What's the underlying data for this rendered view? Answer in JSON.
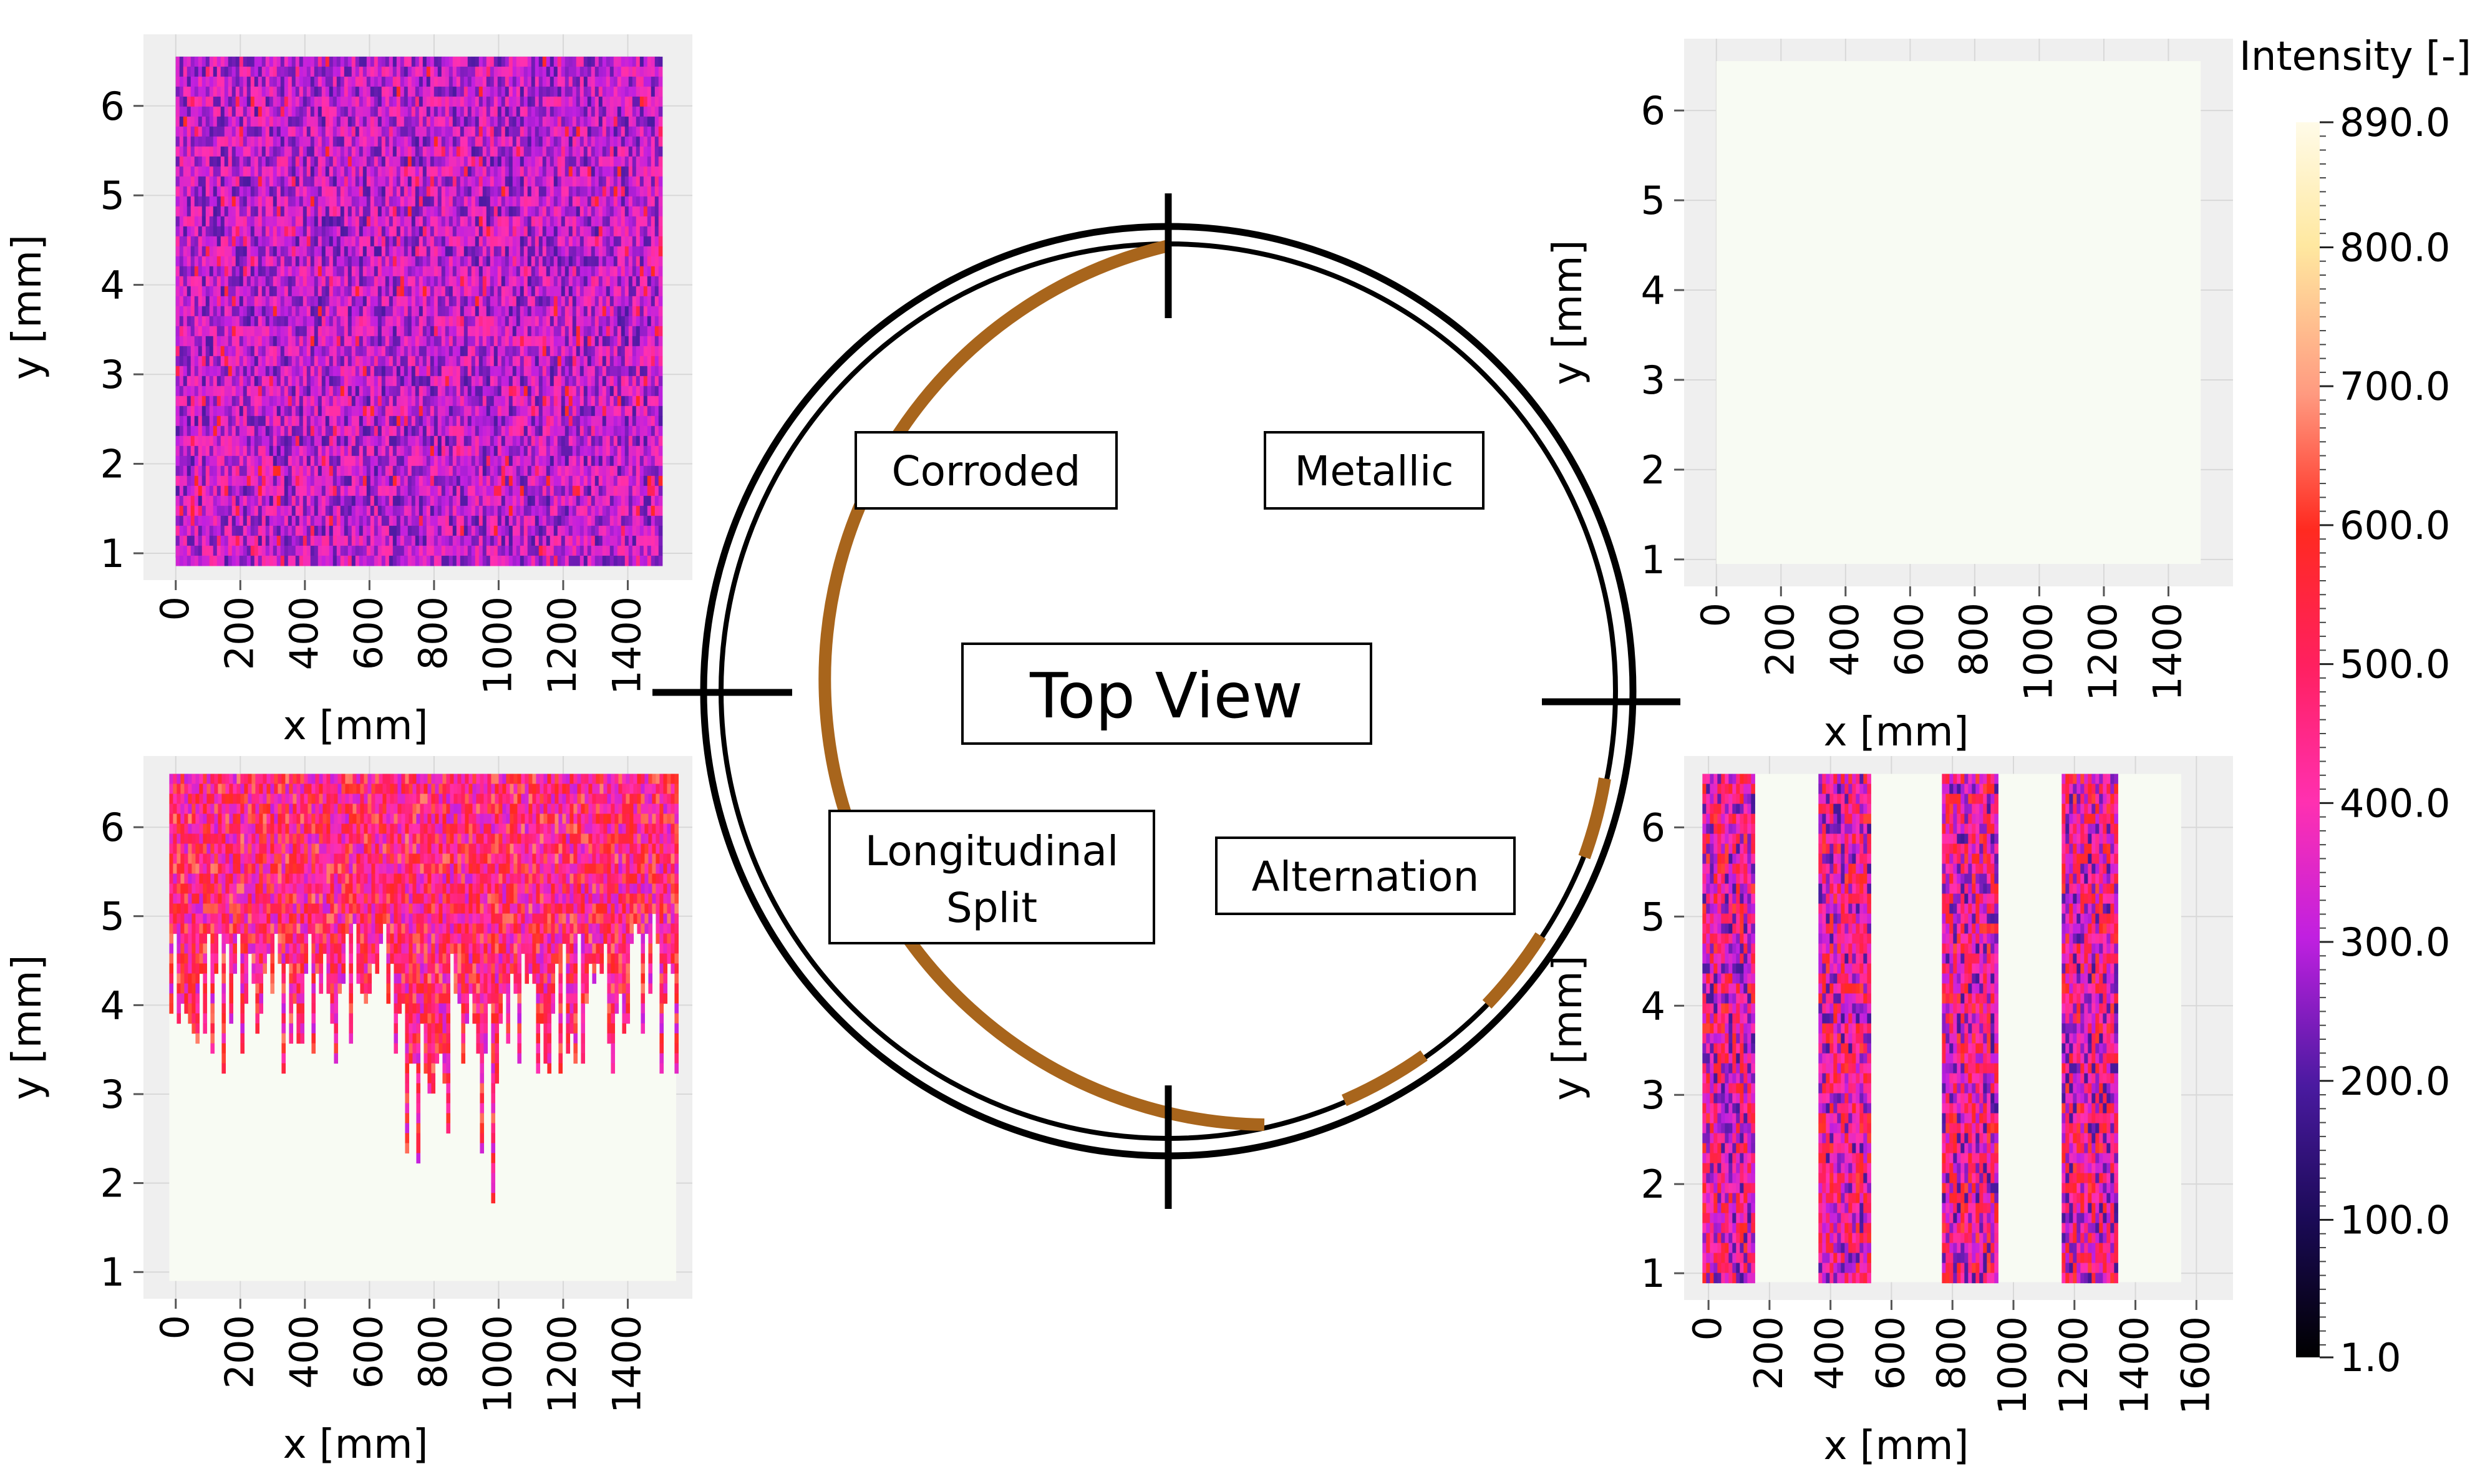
{
  "colorbar": {
    "title": "Intensity [-]",
    "range": [
      1.0,
      890.0
    ],
    "ticks": [
      1.0,
      100.0,
      200.0,
      300.0,
      400.0,
      500.0,
      600.0,
      700.0,
      800.0,
      890.0
    ],
    "tick_labels": [
      "1.0",
      "100.0",
      "200.0",
      "300.0",
      "400.0",
      "500.0",
      "600.0",
      "700.0",
      "800.0",
      "890.0"
    ]
  },
  "diagram": {
    "center_label": "Top View",
    "labels": {
      "corroded": "Corroded",
      "metallic": "Metallic",
      "split_line1": "Longitudinal",
      "split_line2": "Split",
      "alternation": "Alternation"
    },
    "colors": {
      "coating": "#a8651c",
      "ring": "#000000"
    }
  },
  "chart_data": [
    {
      "type": "heatmap",
      "name": "Corroded",
      "xlabel": "x [mm]",
      "ylabel": "y [mm]",
      "xlim": [
        -100,
        1600
      ],
      "ylim": [
        0.7,
        6.8
      ],
      "xticks": [
        0,
        200,
        400,
        600,
        800,
        1000,
        1200,
        1400
      ],
      "yticks": [
        1,
        2,
        3,
        4,
        5,
        6
      ],
      "pattern": "uniform_low",
      "data_extent": {
        "x": [
          0,
          1500
        ],
        "y": [
          0.95,
          6.55
        ]
      }
    },
    {
      "type": "heatmap",
      "name": "Metallic",
      "xlabel": "x [mm]",
      "ylabel": "y [mm]",
      "xlim": [
        -100,
        1600
      ],
      "ylim": [
        0.7,
        6.8
      ],
      "xticks": [
        0,
        200,
        400,
        600,
        800,
        1000,
        1200,
        1400
      ],
      "yticks": [
        1,
        2,
        3,
        4,
        5,
        6
      ],
      "pattern": "saturated",
      "data_extent": {
        "x": [
          0,
          1500
        ],
        "y": [
          0.95,
          6.55
        ]
      }
    },
    {
      "type": "heatmap",
      "name": "Longitudinal Split",
      "xlabel": "x [mm]",
      "ylabel": "y [mm]",
      "xlim": [
        -100,
        1600
      ],
      "ylim": [
        0.7,
        6.8
      ],
      "xticks": [
        0,
        200,
        400,
        600,
        800,
        1000,
        1200,
        1400
      ],
      "yticks": [
        1,
        2,
        3,
        4,
        5,
        6
      ],
      "pattern": "split",
      "data_extent": {
        "x": [
          -20,
          1550
        ],
        "y": [
          0.9,
          6.6
        ]
      },
      "boundary_y": 4.5
    },
    {
      "type": "heatmap",
      "name": "Alternation",
      "xlabel": "x [mm]",
      "ylabel": "y [mm]",
      "xlim": [
        -80,
        1720
      ],
      "ylim": [
        0.7,
        6.8
      ],
      "xticks": [
        0,
        200,
        400,
        600,
        800,
        1000,
        1200,
        1400,
        1600
      ],
      "yticks": [
        1,
        2,
        3,
        4,
        5,
        6
      ],
      "pattern": "bands",
      "data_extent": {
        "x": [
          -20,
          1550
        ],
        "y": [
          0.9,
          6.6
        ]
      },
      "bands": [
        [
          -20,
          150
        ],
        [
          350,
          530
        ],
        [
          760,
          940
        ],
        [
          1150,
          1340
        ]
      ]
    }
  ]
}
